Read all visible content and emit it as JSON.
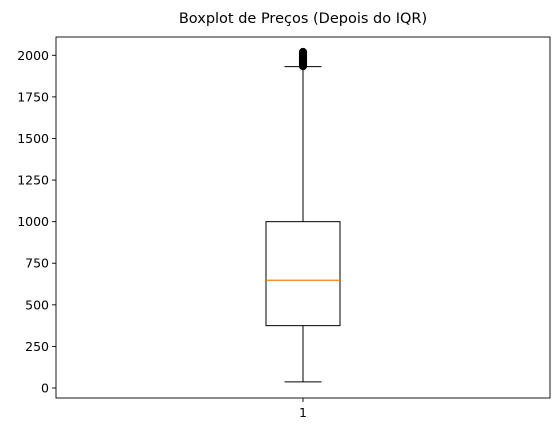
{
  "chart_data": {
    "type": "boxplot",
    "title": "Boxplot de Preços (Depois do IQR)",
    "xlabel": "",
    "ylabel": "",
    "categories": [
      "1"
    ],
    "ylim": [
      -60,
      2110
    ],
    "yticks": [
      0,
      250,
      500,
      750,
      1000,
      1250,
      1500,
      1750,
      2000
    ],
    "grid": false,
    "series": [
      {
        "category": "1",
        "whisker_low": 37,
        "q1": 375,
        "median": 648,
        "q3": 1000,
        "whisker_high": 1932,
        "outliers": [
          1935,
          1940,
          1945,
          1950,
          1955,
          1960,
          1965,
          1970,
          1975,
          1980,
          1985,
          1990,
          1995,
          2000,
          2005,
          2010,
          2015,
          2020
        ]
      }
    ],
    "colors": {
      "box": "#000000",
      "median": "#ff7f0e",
      "whisker": "#000000",
      "outlier": "#000000"
    }
  }
}
